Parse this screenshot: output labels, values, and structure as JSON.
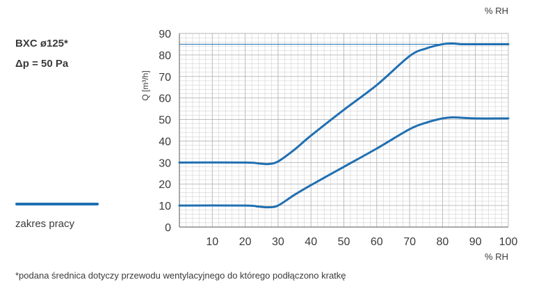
{
  "legend": {
    "model": "BXC ø125*",
    "pressure": "Δp = 50 Pa",
    "line_label": "zakres pracy"
  },
  "footnote": "*podana średnica dotyczy przewodu wentylacyjnego do którego podłączono kratkę",
  "colors": {
    "curve": "#1f6fb2",
    "grid": "#c8c8c8",
    "axis": "#555555",
    "text": "#3a3a3a"
  },
  "chart_data": {
    "type": "line",
    "title": "",
    "xlabel": "% RH",
    "x_unit_top": "% RH",
    "ylabel": "Q [m³/h]",
    "xlim": [
      0,
      100
    ],
    "ylim": [
      0,
      90
    ],
    "x_ticks": [
      "10",
      "20",
      "30",
      "40",
      "50",
      "60",
      "70",
      "80",
      "90",
      "100"
    ],
    "y_ticks": [
      "0",
      "10",
      "20",
      "30",
      "40",
      "50",
      "60",
      "70",
      "80",
      "90"
    ],
    "grid": true,
    "reference_line_y": 85,
    "series": [
      {
        "x": [
          0,
          20,
          24,
          27,
          30,
          35,
          40,
          50,
          60,
          70,
          75,
          80,
          83,
          86,
          90,
          100
        ],
        "y": [
          30,
          30,
          29.6,
          29.3,
          30.5,
          36,
          42.5,
          54.5,
          66,
          79.5,
          83,
          85,
          85.3,
          85,
          85,
          85
        ]
      },
      {
        "x": [
          0,
          20,
          24,
          27,
          30,
          35,
          40,
          50,
          60,
          70,
          75,
          80,
          83,
          86,
          90,
          100
        ],
        "y": [
          10,
          10,
          9.5,
          9.2,
          10,
          15,
          19.5,
          28,
          36.5,
          45.5,
          48.5,
          50.5,
          51,
          50.8,
          50.5,
          50.5
        ]
      }
    ]
  }
}
